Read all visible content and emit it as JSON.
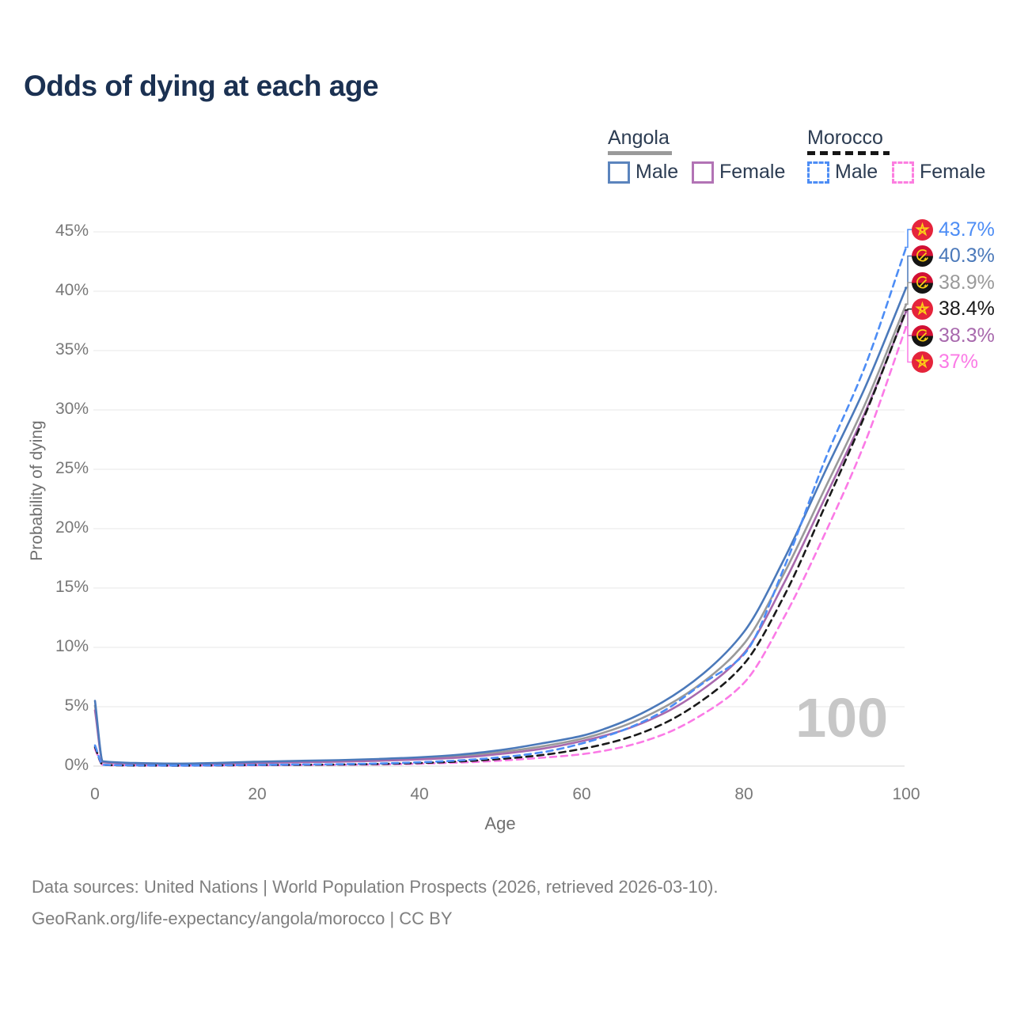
{
  "title": "Odds of dying at each age",
  "legend": {
    "groups": [
      {
        "name": "Angola",
        "line_style": "solid",
        "underline_color": "#9a9a9a",
        "items": [
          {
            "label": "Male",
            "color": "#5b84bd"
          },
          {
            "label": "Female",
            "color": "#b273b5"
          }
        ]
      },
      {
        "name": "Morocco",
        "line_style": "dashed",
        "underline_color": "#161616",
        "items": [
          {
            "label": "Male",
            "color": "#4d8df5"
          },
          {
            "label": "Female",
            "color": "#fc7ee0"
          }
        ]
      }
    ]
  },
  "chart_data": {
    "type": "line",
    "title": "Odds of dying at each age",
    "xlabel": "Age",
    "ylabel": "Probability of dying",
    "xlim": [
      0,
      100
    ],
    "ylim_percent": [
      0,
      45
    ],
    "grid": "horizontal",
    "x_tick_labels": [
      "0",
      "20",
      "40",
      "60",
      "80",
      "100"
    ],
    "y_tick_labels": [
      "0%",
      "5%",
      "10%",
      "15%",
      "20%",
      "25%",
      "30%",
      "35%",
      "40%",
      "45%"
    ],
    "hovered_age_watermark": "100",
    "x": [
      0,
      1,
      5,
      10,
      15,
      20,
      25,
      30,
      35,
      40,
      45,
      50,
      55,
      60,
      65,
      70,
      75,
      80,
      85,
      90,
      95,
      100
    ],
    "series": [
      {
        "key": "angola_male",
        "name": "Angola Male",
        "country": "angola",
        "sex": "Male",
        "color": "#4b79ba",
        "dashed": false,
        "end_label": "40.3%",
        "values": [
          5.5,
          0.4,
          0.26,
          0.21,
          0.27,
          0.37,
          0.44,
          0.5,
          0.6,
          0.74,
          0.97,
          1.35,
          1.9,
          2.55,
          3.7,
          5.4,
          7.8,
          11.3,
          17.5,
          24.8,
          32.0,
          40.3
        ]
      },
      {
        "key": "angola_total",
        "name": "Angola",
        "country": "angola",
        "sex": "Total",
        "color": "#9a9a9a",
        "dashed": false,
        "end_label": "38.9%",
        "values": [
          5.1,
          0.36,
          0.23,
          0.19,
          0.24,
          0.32,
          0.38,
          0.43,
          0.52,
          0.64,
          0.84,
          1.18,
          1.65,
          2.3,
          3.35,
          4.9,
          7.1,
          10.3,
          16.3,
          23.4,
          30.6,
          38.9
        ]
      },
      {
        "key": "angola_female",
        "name": "Angola Female",
        "country": "angola",
        "sex": "Female",
        "color": "#a869ad",
        "dashed": false,
        "end_label": "38.3%",
        "values": [
          4.7,
          0.32,
          0.21,
          0.17,
          0.21,
          0.27,
          0.32,
          0.37,
          0.45,
          0.56,
          0.72,
          1.02,
          1.45,
          2.1,
          3.0,
          4.4,
          6.5,
          9.5,
          15.5,
          22.6,
          29.9,
          38.3
        ]
      },
      {
        "key": "morocco_male",
        "name": "Morocco Male",
        "country": "morocco",
        "sex": "Male",
        "color": "#4d8df5",
        "dashed": true,
        "end_label": "43.7%",
        "values": [
          1.75,
          0.11,
          0.06,
          0.05,
          0.07,
          0.1,
          0.13,
          0.16,
          0.22,
          0.32,
          0.48,
          0.74,
          1.15,
          1.9,
          3.0,
          4.6,
          7.0,
          9.4,
          16.8,
          25.8,
          33.8,
          43.7
        ]
      },
      {
        "key": "morocco_total",
        "name": "Morocco",
        "country": "morocco",
        "sex": "Total",
        "color": "#1a1a1a",
        "dashed": true,
        "end_label": "38.4%",
        "values": [
          1.6,
          0.1,
          0.05,
          0.04,
          0.06,
          0.09,
          0.11,
          0.13,
          0.18,
          0.26,
          0.39,
          0.6,
          0.92,
          1.45,
          2.25,
          3.55,
          5.6,
          8.6,
          14.4,
          21.9,
          29.7,
          38.4
        ]
      },
      {
        "key": "morocco_female",
        "name": "Morocco Female",
        "country": "morocco",
        "sex": "Female",
        "color": "#fb7ae6",
        "dashed": true,
        "end_label": "37%",
        "values": [
          1.45,
          0.09,
          0.05,
          0.04,
          0.05,
          0.07,
          0.09,
          0.11,
          0.14,
          0.2,
          0.3,
          0.46,
          0.7,
          1.0,
          1.6,
          2.65,
          4.4,
          7.0,
          12.6,
          19.6,
          27.4,
          37.0
        ]
      }
    ],
    "render_order": [
      "angola_total",
      "angola_female",
      "angola_male",
      "morocco_female",
      "morocco_total",
      "morocco_male"
    ],
    "label_order": [
      "morocco_male",
      "angola_male",
      "angola_total",
      "morocco_total",
      "angola_female",
      "morocco_female"
    ]
  },
  "flags": {
    "morocco": {
      "background": "#e5243b",
      "star": "#fcd116"
    },
    "angola": {
      "top": "#d21034",
      "bottom": "#151515",
      "emblem": "#fcd116"
    }
  },
  "footer": {
    "line1": "Data sources: United Nations | World Population Prospects (2026, retrieved 2026-03-10).",
    "line2": "GeoRank.org/life-expectancy/angola/morocco | CC BY"
  }
}
